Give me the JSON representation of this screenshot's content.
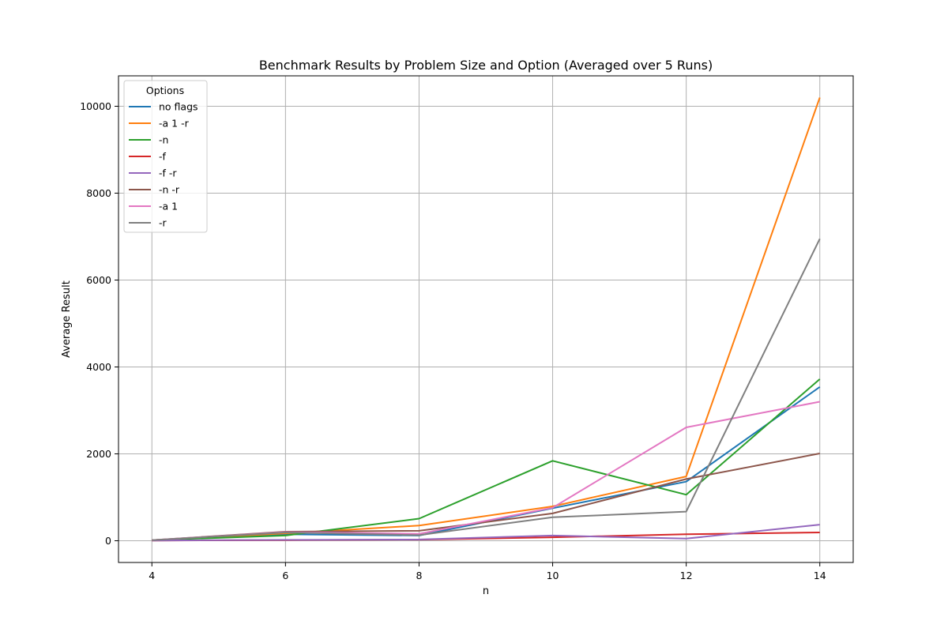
{
  "chart_data": {
    "type": "line",
    "title": "Benchmark Results by Problem Size and Option (Averaged over 5 Runs)",
    "xlabel": "n",
    "ylabel": "Average Result",
    "x": [
      4,
      6,
      8,
      10,
      12,
      14
    ],
    "xlim": [
      3.5,
      14.5
    ],
    "ylim": [
      -500,
      10700
    ],
    "xticks": [
      4,
      6,
      8,
      10,
      12,
      14
    ],
    "yticks": [
      0,
      2000,
      4000,
      6000,
      8000,
      10000
    ],
    "grid": true,
    "legend": {
      "title": "Options",
      "placement": "top-left"
    },
    "series": [
      {
        "name": "no flags",
        "color": "#1f77b4",
        "values": [
          15,
          150,
          120,
          750,
          1360,
          3540
        ]
      },
      {
        "name": "-a 1 -r",
        "color": "#ff7f0e",
        "values": [
          15,
          170,
          350,
          790,
          1480,
          10200
        ]
      },
      {
        "name": "-n",
        "color": "#2ca02c",
        "values": [
          15,
          120,
          510,
          1840,
          1060,
          3720
        ]
      },
      {
        "name": "-f",
        "color": "#d62728",
        "values": [
          5,
          15,
          25,
          80,
          150,
          190
        ]
      },
      {
        "name": "-f -r",
        "color": "#9467bd",
        "values": [
          5,
          20,
          30,
          120,
          50,
          370
        ]
      },
      {
        "name": "-n -r",
        "color": "#8c564b",
        "values": [
          15,
          210,
          230,
          630,
          1420,
          2010
        ]
      },
      {
        "name": "-a 1",
        "color": "#e377c2",
        "values": [
          15,
          200,
          160,
          760,
          2610,
          3200
        ]
      },
      {
        "name": "-r",
        "color": "#7f7f7f",
        "values": [
          15,
          190,
          130,
          540,
          670,
          6950
        ]
      }
    ]
  }
}
